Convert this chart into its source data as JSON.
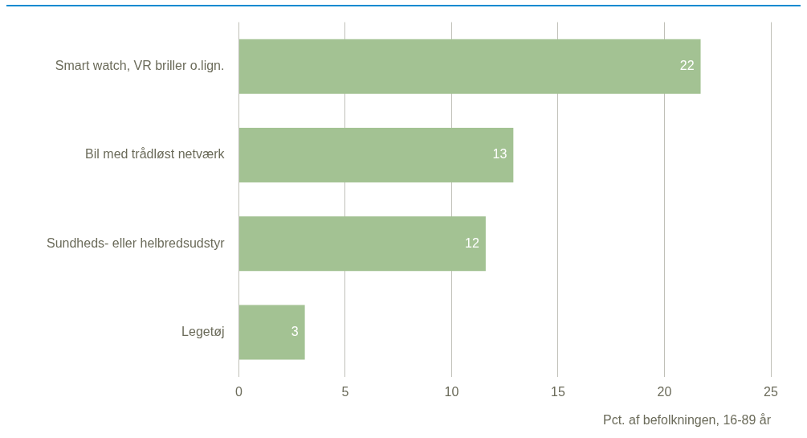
{
  "chart_data": {
    "type": "bar",
    "orientation": "horizontal",
    "categories": [
      "Smart watch, VR briller o.lign.",
      "Bil med trådløst netværk",
      "Sundheds- eller helbredsudstyr",
      "Legetøj"
    ],
    "series": [
      {
        "color": "#a3c293",
        "values": [
          21.7,
          12.9,
          11.6,
          3.1
        ],
        "value_labels": [
          "22",
          "13",
          "12",
          "3"
        ]
      }
    ],
    "xlim": [
      0,
      25
    ],
    "xticks": [
      0,
      5,
      10,
      15,
      20,
      25
    ],
    "xlabel": "Pct. af befolkningen, 16-89 år",
    "grid": "x",
    "legend": false
  }
}
